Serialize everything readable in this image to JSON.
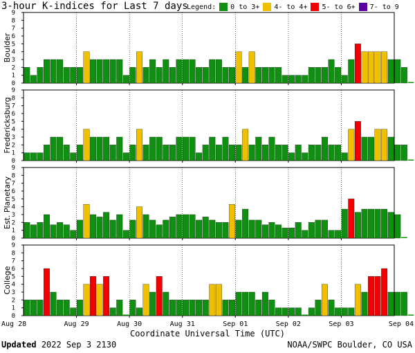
{
  "title": "3-hour K-indices for Last 7 days",
  "legend": {
    "label": "Legend:",
    "items": [
      {
        "label": "0 to 3+",
        "color": "#109010"
      },
      {
        "label": "4- to 4+",
        "color": "#f0c000"
      },
      {
        "label": "5- to 6+",
        "color": "#f00000"
      },
      {
        "label": "7- to 9",
        "color": "#5a00a0"
      }
    ]
  },
  "footer": {
    "updated_label": "Updated",
    "updated_time": "2022 Sep  3 2130",
    "source": "NOAA/SWPC Boulder, CO USA"
  },
  "chart_data": [
    {
      "type": "bar",
      "station": "Boulder",
      "yticks": [
        "0",
        "1",
        "2",
        "3",
        "4",
        "5",
        "6",
        "7",
        "8",
        "9"
      ],
      "ylim": [
        0,
        9
      ],
      "xlabel": "Coordinate Universal Time (UTC)",
      "x_tick_labels": [
        "Aug 28",
        "Aug 29",
        "Aug 30",
        "Aug 31",
        "Sep 01",
        "Sep 02",
        "Sep 03",
        "Sep 04"
      ],
      "values": [
        2,
        1,
        2,
        3,
        3,
        3,
        2,
        2,
        2,
        4,
        3,
        3,
        3,
        3,
        3,
        1,
        2,
        4,
        2,
        3,
        2,
        3,
        2,
        3,
        3,
        3,
        2,
        2,
        3,
        3,
        2,
        2,
        4,
        2,
        4,
        2,
        2,
        2,
        2,
        1,
        1,
        1,
        1,
        2,
        2,
        2,
        3,
        2,
        1,
        3,
        5,
        4,
        4,
        4,
        4,
        3,
        3,
        2,
        0
      ]
    },
    {
      "type": "bar",
      "station": "Fredericksburg",
      "yticks": [
        "0",
        "1",
        "2",
        "3",
        "4",
        "5",
        "6",
        "7",
        "8",
        "9"
      ],
      "ylim": [
        0,
        9
      ],
      "xlabel": "Coordinate Universal Time (UTC)",
      "x_tick_labels": [
        "Aug 28",
        "Aug 29",
        "Aug 30",
        "Aug 31",
        "Sep 01",
        "Sep 02",
        "Sep 03",
        "Sep 04"
      ],
      "values": [
        1,
        1,
        1,
        2,
        3,
        3,
        2,
        1,
        2,
        4,
        3,
        3,
        3,
        2,
        3,
        1,
        2,
        4,
        2,
        3,
        3,
        2,
        2,
        3,
        3,
        3,
        1,
        2,
        3,
        2,
        3,
        2,
        2,
        4,
        2,
        3,
        2,
        3,
        2,
        2,
        1,
        2,
        1,
        2,
        2,
        3,
        2,
        2,
        1,
        4,
        5,
        3,
        3,
        4,
        4,
        3,
        2,
        2,
        0
      ]
    },
    {
      "type": "bar",
      "station": "Est. Planetary",
      "yticks": [
        "0",
        "1",
        "2",
        "3",
        "4",
        "5",
        "6",
        "7",
        "8",
        "9"
      ],
      "ylim": [
        0,
        9
      ],
      "xlabel": "Coordinate Universal Time (UTC)",
      "x_tick_labels": [
        "Aug 28",
        "Aug 29",
        "Aug 30",
        "Aug 31",
        "Sep 01",
        "Sep 02",
        "Sep 03",
        "Sep 04"
      ],
      "values": [
        2,
        1.7,
        2,
        3,
        1.7,
        2,
        1.7,
        1,
        2.3,
        4.3,
        3,
        2.7,
        3.3,
        2.3,
        3,
        1,
        2.3,
        4,
        3,
        2.3,
        1.7,
        2.3,
        2.7,
        3,
        3,
        3,
        2.3,
        2.7,
        2.3,
        2,
        2,
        4.3,
        2.3,
        3.7,
        2.3,
        2.3,
        1.7,
        2,
        1.7,
        1.3,
        1.3,
        2,
        1,
        2,
        2.3,
        2.3,
        1,
        1,
        3.7,
        5,
        3.3,
        3.7,
        3.7,
        3.7,
        3.7,
        3.3,
        3,
        0
      ]
    },
    {
      "type": "bar",
      "station": "College",
      "yticks": [
        "0",
        "1",
        "2",
        "3",
        "4",
        "5",
        "6",
        "7",
        "8",
        "9"
      ],
      "ylim": [
        0,
        9
      ],
      "xlabel": "Coordinate Universal Time (UTC)",
      "x_tick_labels": [
        "Aug 28",
        "Aug 29",
        "Aug 30",
        "Aug 31",
        "Sep 01",
        "Sep 02",
        "Sep 03",
        "Sep 04"
      ],
      "values": [
        2,
        2,
        2,
        6,
        3,
        2,
        2,
        1,
        2,
        4,
        5,
        4,
        5,
        1,
        2,
        0,
        2,
        1,
        4,
        3,
        5,
        3,
        2,
        2,
        2,
        2,
        2,
        2,
        4,
        4,
        2,
        2,
        3,
        3,
        3,
        2,
        3,
        2,
        1,
        1,
        1,
        1,
        0,
        1,
        2,
        4,
        2,
        1,
        1,
        1,
        4,
        3,
        5,
        5,
        6,
        3,
        3,
        3,
        0
      ]
    }
  ]
}
